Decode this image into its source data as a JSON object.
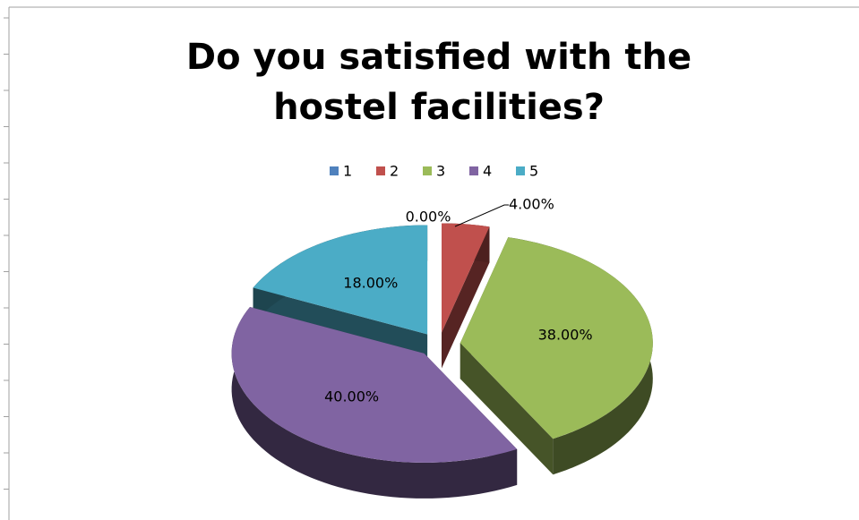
{
  "chart_data": {
    "type": "pie",
    "title": "Do you satisfied with the hostel facilities?",
    "categories": [
      "1",
      "2",
      "3",
      "4",
      "5"
    ],
    "values": [
      0,
      4,
      38,
      40,
      18
    ],
    "value_labels": [
      "0.00%",
      "4.00%",
      "38.00%",
      "40.00%",
      "18.00%"
    ],
    "colors": [
      "#4f81bd",
      "#c0504d",
      "#9bbb59",
      "#8064a2",
      "#4bacc6"
    ],
    "legend": "top"
  }
}
